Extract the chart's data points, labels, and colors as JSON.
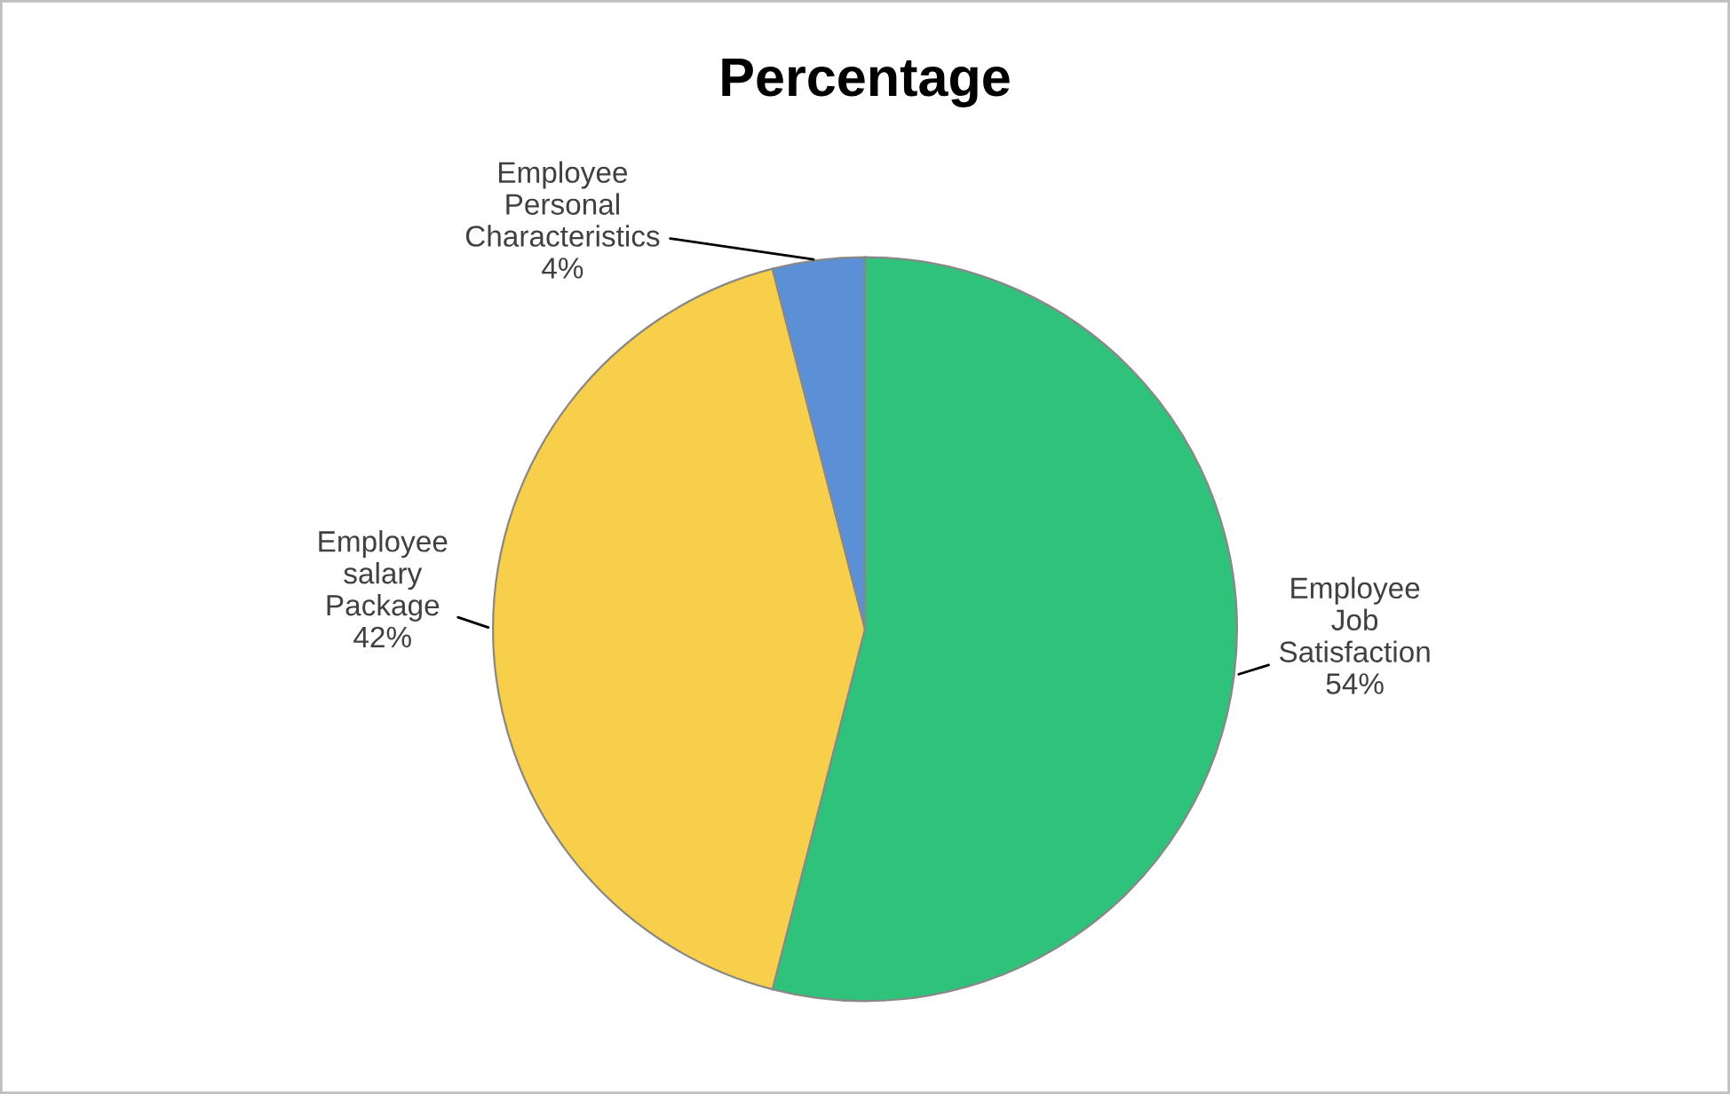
{
  "chart_data": {
    "type": "pie",
    "title": "Percentage",
    "categories": [
      "Employee Job Satisfaction",
      "Employee salary Package",
      "Employee Personal Characteristics"
    ],
    "values": [
      54,
      42,
      4
    ],
    "colors": [
      "#2fc27a",
      "#f7cf4a",
      "#5b8fd6"
    ],
    "value_labels": [
      "54%",
      "42%",
      "4%"
    ]
  }
}
